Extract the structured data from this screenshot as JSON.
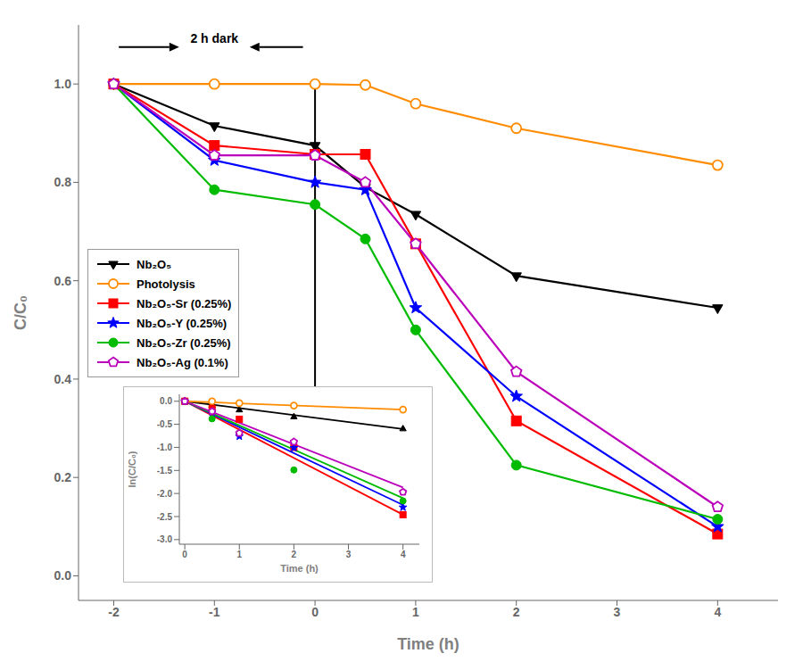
{
  "chart_data": [
    {
      "type": "line",
      "x_label": "Time (h)",
      "y_label": "C/C₀",
      "xlim": [
        -2.35,
        4.6
      ],
      "ylim": [
        -0.05,
        1.12
      ],
      "xticks": [
        -2,
        -1,
        0,
        1,
        2,
        3,
        4
      ],
      "yticks": [
        {
          "value": 0.0,
          "label": "0.0"
        },
        0.2,
        0.4,
        0.6,
        0.8,
        {
          "value": 1.0,
          "label": "1.0"
        }
      ],
      "grid": false,
      "legend": "lower left",
      "x": [
        -2,
        -1,
        0,
        0.5,
        1,
        2,
        4
      ],
      "series": [
        {
          "name": "Nb₂O₅",
          "color": "#000000",
          "marker": "triangle_down",
          "values": [
            1.0,
            0.915,
            0.875,
            0.79,
            0.735,
            0.61,
            0.545
          ]
        },
        {
          "name": "Photolysis",
          "color": "#FF8C00",
          "marker": "open_circle",
          "values": [
            1.0,
            1.0,
            1.0,
            0.998,
            0.96,
            0.91,
            0.835
          ]
        },
        {
          "name": "Nb₂O₅-Sr (0.25%)",
          "color": "#FF0000",
          "marker": "square",
          "values": [
            1.0,
            0.875,
            0.857,
            0.857,
            0.675,
            0.315,
            0.085
          ]
        },
        {
          "name": "Nb₂O₅-Y (0.25%)",
          "color": "#0000FF",
          "marker": "star",
          "values": [
            1.0,
            0.845,
            0.8,
            0.785,
            0.545,
            0.365,
            0.1
          ]
        },
        {
          "name": "Nb₂O₅-Zr (0.25%)",
          "color": "#00BB00",
          "marker": "circle",
          "values": [
            1.0,
            0.785,
            0.755,
            0.685,
            0.5,
            0.225,
            0.115
          ]
        },
        {
          "name": "Nb₂O₅-Ag (0.1%)",
          "color": "#BB00BB",
          "marker": "open_pentagon",
          "values": [
            1.0,
            0.855,
            0.855,
            0.8,
            0.675,
            0.415,
            0.14
          ]
        }
      ],
      "annotations": [
        {
          "text": "2 h dark",
          "x": -1.0,
          "y": 1.075
        }
      ],
      "arrows": [
        {
          "x1": 0.0,
          "y1": 1.005,
          "x2": 0.0,
          "y2": 0.0
        },
        {
          "x1": -1.95,
          "y1": 1.075,
          "x2": -1.35,
          "y2": 1.075
        },
        {
          "x1": -0.12,
          "y1": 1.075,
          "x2": -0.65,
          "y2": 1.075
        }
      ]
    },
    {
      "type": "scatter",
      "x_label": "Time (h)",
      "y_label": "ln(C/C₀)",
      "xlim": [
        -0.1,
        4.3
      ],
      "ylim": [
        -3.1,
        0.15
      ],
      "xticks": [
        0,
        1,
        2,
        3,
        4
      ],
      "yticks": [
        {
          "value": 0.0,
          "label": "0.0"
        },
        -0.5,
        {
          "value": -1.0,
          "label": "-1.0"
        },
        -1.5,
        {
          "value": -2.0,
          "label": "-2.0"
        },
        -2.5,
        {
          "value": -3.0,
          "label": "-3.0"
        }
      ],
      "series": [
        {
          "color": "#000000",
          "marker": "triangle_up",
          "x": [
            0,
            0.5,
            1,
            2,
            4
          ],
          "values": [
            0.0,
            -0.09,
            -0.19,
            -0.34,
            -0.6
          ],
          "fit": {
            "x": [
              0,
              4
            ],
            "values": [
              0.0,
              -0.6
            ]
          }
        },
        {
          "color": "#FF8C00",
          "marker": "open_circle",
          "x": [
            0,
            0.5,
            1,
            2,
            4
          ],
          "values": [
            0.0,
            -0.002,
            -0.04,
            -0.094,
            -0.18
          ],
          "fit": {
            "x": [
              0,
              4
            ],
            "values": [
              0.0,
              -0.18
            ]
          }
        },
        {
          "color": "#FF0000",
          "marker": "square",
          "x": [
            0,
            0.5,
            1,
            2,
            4
          ],
          "values": [
            0.0,
            -0.155,
            -0.39,
            -1.0,
            -2.46
          ],
          "fit": {
            "x": [
              0,
              4
            ],
            "values": [
              0.0,
              -2.46
            ]
          }
        },
        {
          "color": "#0000FF",
          "marker": "star",
          "x": [
            0,
            0.5,
            1,
            2,
            4
          ],
          "values": [
            0.0,
            -0.24,
            -0.76,
            -1.01,
            -2.3
          ],
          "fit": {
            "x": [
              0,
              4
            ],
            "values": [
              0.0,
              -2.25
            ]
          }
        },
        {
          "color": "#00BB00",
          "marker": "circle",
          "x": [
            0,
            0.5,
            1,
            2,
            4
          ],
          "values": [
            0.0,
            -0.38,
            -0.69,
            -1.49,
            -2.16
          ],
          "fit": {
            "x": [
              0,
              4
            ],
            "values": [
              0.0,
              -2.1
            ]
          }
        },
        {
          "color": "#BB00BB",
          "marker": "open_pentagon",
          "x": [
            0,
            0.5,
            1,
            2,
            4
          ],
          "values": [
            0.0,
            -0.22,
            -0.69,
            -0.88,
            -1.97
          ],
          "fit": {
            "x": [
              0,
              4
            ],
            "values": [
              0.0,
              -1.87
            ]
          }
        }
      ]
    }
  ]
}
